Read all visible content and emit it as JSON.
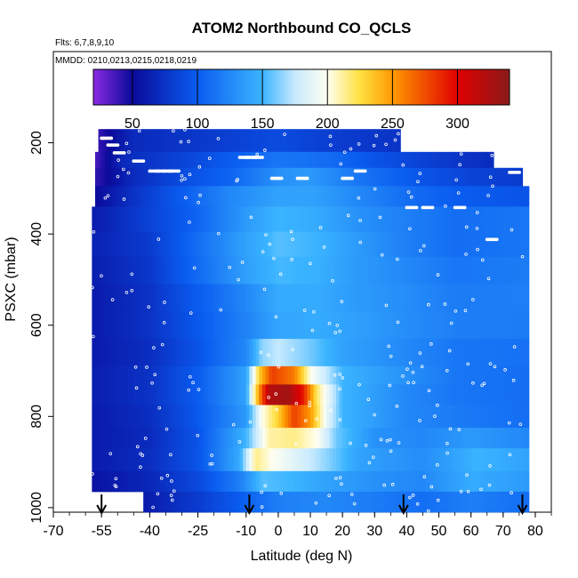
{
  "chart_data": {
    "type": "heatmap",
    "title": "ATOM2 Northbound CO_QCLS",
    "subtitle_flights": "Flts: 6,7,8,9,10",
    "subtitle_dates": "MMDD: 0210,0213,0215,0218,0219",
    "xlabel": "Latitude (deg N)",
    "ylabel": "PSXC (mbar)",
    "xlim": [
      -70,
      85
    ],
    "ylim": [
      1010,
      0
    ],
    "xticks": [
      -70,
      -55,
      -40,
      -25,
      -10,
      0,
      10,
      20,
      30,
      40,
      50,
      60,
      70,
      80
    ],
    "xtick_labels": [
      "-70",
      "-55",
      "-40",
      "-25",
      "-10",
      "0",
      "10",
      "20",
      "30",
      "40",
      "50",
      "60",
      "70",
      "80"
    ],
    "yticks": [
      200,
      400,
      600,
      800,
      1000
    ],
    "ytick_labels": [
      "200",
      "400",
      "600",
      "800",
      "1000"
    ],
    "colorbar": {
      "range": [
        20,
        340
      ],
      "ticks": [
        50,
        100,
        150,
        200,
        250,
        300
      ],
      "tick_labels": [
        "50",
        "100",
        "150",
        "200",
        "250",
        "300"
      ],
      "stops": [
        {
          "v": 20,
          "c": "#8a2be2"
        },
        {
          "v": 50,
          "c": "#0a0a9a"
        },
        {
          "v": 100,
          "c": "#0a5cf0"
        },
        {
          "v": 150,
          "c": "#3ab4ff"
        },
        {
          "v": 175,
          "c": "#c8eaff"
        },
        {
          "v": 200,
          "c": "#fffff0"
        },
        {
          "v": 225,
          "c": "#ffe040"
        },
        {
          "v": 250,
          "c": "#ff9a00"
        },
        {
          "v": 300,
          "c": "#e00000"
        },
        {
          "v": 340,
          "c": "#8b1a1a"
        }
      ]
    },
    "bands": [
      {
        "p0": 170,
        "p1": 220,
        "lat0": -56,
        "lat1": 38,
        "nodes": [
          [
            -56,
            40
          ],
          [
            -45,
            70
          ],
          [
            -25,
            78
          ],
          [
            0,
            90
          ],
          [
            20,
            80
          ],
          [
            38,
            75
          ]
        ]
      },
      {
        "p0": 220,
        "p1": 255,
        "lat0": -57,
        "lat1": 67,
        "nodes": [
          [
            -57,
            35
          ],
          [
            -48,
            70
          ],
          [
            -30,
            85
          ],
          [
            -15,
            100
          ],
          [
            0,
            115
          ],
          [
            15,
            110
          ],
          [
            30,
            95
          ],
          [
            50,
            80
          ],
          [
            67,
            70
          ]
        ]
      },
      {
        "p0": 255,
        "p1": 295,
        "lat0": -57,
        "lat1": 76,
        "nodes": [
          [
            -57,
            40
          ],
          [
            -45,
            70
          ],
          [
            -30,
            90
          ],
          [
            -15,
            105
          ],
          [
            0,
            130
          ],
          [
            10,
            135
          ],
          [
            25,
            115
          ],
          [
            45,
            95
          ],
          [
            60,
            85
          ],
          [
            76,
            80
          ]
        ]
      },
      {
        "p0": 295,
        "p1": 340,
        "lat0": -57,
        "lat1": 78,
        "nodes": [
          [
            -57,
            50
          ],
          [
            -45,
            75
          ],
          [
            -30,
            100
          ],
          [
            -15,
            125
          ],
          [
            0,
            140
          ],
          [
            10,
            140
          ],
          [
            25,
            125
          ],
          [
            40,
            110
          ],
          [
            55,
            100
          ],
          [
            78,
            95
          ]
        ]
      },
      {
        "p0": 340,
        "p1": 395,
        "lat0": -58,
        "lat1": 78,
        "nodes": [
          [
            -58,
            60
          ],
          [
            -40,
            85
          ],
          [
            -25,
            105
          ],
          [
            -10,
            135
          ],
          [
            0,
            150
          ],
          [
            12,
            145
          ],
          [
            25,
            130
          ],
          [
            40,
            120
          ],
          [
            55,
            110
          ],
          [
            78,
            115
          ]
        ]
      },
      {
        "p0": 395,
        "p1": 450,
        "lat0": -58,
        "lat1": 78,
        "nodes": [
          [
            -58,
            65
          ],
          [
            -40,
            80
          ],
          [
            -25,
            110
          ],
          [
            -10,
            140
          ],
          [
            0,
            155
          ],
          [
            12,
            150
          ],
          [
            25,
            135
          ],
          [
            40,
            120
          ],
          [
            55,
            110
          ],
          [
            78,
            115
          ]
        ]
      },
      {
        "p0": 450,
        "p1": 510,
        "lat0": -58,
        "lat1": 78,
        "nodes": [
          [
            -58,
            62
          ],
          [
            -40,
            78
          ],
          [
            -25,
            108
          ],
          [
            -10,
            138
          ],
          [
            0,
            152
          ],
          [
            12,
            148
          ],
          [
            25,
            135
          ],
          [
            40,
            125
          ],
          [
            55,
            115
          ],
          [
            78,
            118
          ]
        ]
      },
      {
        "p0": 510,
        "p1": 570,
        "lat0": -58,
        "lat1": 78,
        "nodes": [
          [
            -58,
            60
          ],
          [
            -40,
            75
          ],
          [
            -25,
            100
          ],
          [
            -10,
            125
          ],
          [
            0,
            145
          ],
          [
            12,
            145
          ],
          [
            25,
            135
          ],
          [
            40,
            128
          ],
          [
            55,
            118
          ],
          [
            78,
            120
          ]
        ]
      },
      {
        "p0": 570,
        "p1": 630,
        "lat0": -58,
        "lat1": 78,
        "nodes": [
          [
            -58,
            60
          ],
          [
            -40,
            75
          ],
          [
            -25,
            98
          ],
          [
            -10,
            122
          ],
          [
            0,
            142
          ],
          [
            12,
            145
          ],
          [
            25,
            138
          ],
          [
            40,
            128
          ],
          [
            55,
            120
          ],
          [
            78,
            118
          ]
        ]
      },
      {
        "p0": 630,
        "p1": 690,
        "lat0": -58,
        "lat1": 78,
        "nodes": [
          [
            -58,
            60
          ],
          [
            -40,
            72
          ],
          [
            -25,
            95
          ],
          [
            -10,
            125
          ],
          [
            -5,
            165
          ],
          [
            0,
            175
          ],
          [
            10,
            160
          ],
          [
            20,
            140
          ],
          [
            40,
            125
          ],
          [
            55,
            115
          ],
          [
            78,
            112
          ]
        ]
      },
      {
        "p0": 690,
        "p1": 730,
        "lat0": -58,
        "lat1": 78,
        "nodes": [
          [
            -58,
            62
          ],
          [
            -40,
            75
          ],
          [
            -25,
            100
          ],
          [
            -10,
            140
          ],
          [
            -6,
            230
          ],
          [
            -2,
            280
          ],
          [
            5,
            260
          ],
          [
            10,
            200
          ],
          [
            20,
            150
          ],
          [
            40,
            130
          ],
          [
            55,
            115
          ],
          [
            78,
            110
          ]
        ]
      },
      {
        "p0": 730,
        "p1": 775,
        "lat0": -58,
        "lat1": 78,
        "nodes": [
          [
            -58,
            62
          ],
          [
            -40,
            75
          ],
          [
            -25,
            100
          ],
          [
            -10,
            140
          ],
          [
            -6,
            250
          ],
          [
            -3,
            320
          ],
          [
            3,
            330
          ],
          [
            8,
            290
          ],
          [
            12,
            220
          ],
          [
            20,
            150
          ],
          [
            40,
            125
          ],
          [
            55,
            115
          ],
          [
            78,
            110
          ]
        ]
      },
      {
        "p0": 775,
        "p1": 825,
        "lat0": -58,
        "lat1": 78,
        "nodes": [
          [
            -58,
            60
          ],
          [
            -40,
            72
          ],
          [
            -25,
            98
          ],
          [
            -10,
            135
          ],
          [
            -5,
            200
          ],
          [
            0,
            230
          ],
          [
            5,
            280
          ],
          [
            10,
            250
          ],
          [
            15,
            190
          ],
          [
            20,
            150
          ],
          [
            40,
            125
          ],
          [
            55,
            118
          ],
          [
            78,
            110
          ]
        ]
      },
      {
        "p0": 825,
        "p1": 870,
        "lat0": -58,
        "lat1": 78,
        "nodes": [
          [
            -58,
            60
          ],
          [
            -40,
            70
          ],
          [
            -25,
            95
          ],
          [
            -10,
            150
          ],
          [
            -3,
            210
          ],
          [
            5,
            215
          ],
          [
            12,
            200
          ],
          [
            18,
            160
          ],
          [
            30,
            130
          ],
          [
            45,
            125
          ],
          [
            60,
            135
          ],
          [
            78,
            125
          ]
        ]
      },
      {
        "p0": 870,
        "p1": 920,
        "lat0": -58,
        "lat1": 78,
        "nodes": [
          [
            -58,
            60
          ],
          [
            -40,
            72
          ],
          [
            -25,
            95
          ],
          [
            -12,
            145
          ],
          [
            -7,
            215
          ],
          [
            -2,
            200
          ],
          [
            8,
            180
          ],
          [
            15,
            165
          ],
          [
            25,
            140
          ],
          [
            45,
            128
          ],
          [
            62,
            150
          ],
          [
            78,
            140
          ]
        ]
      },
      {
        "p0": 920,
        "p1": 965,
        "lat0": -58,
        "lat1": 78,
        "nodes": [
          [
            -58,
            55
          ],
          [
            -40,
            68
          ],
          [
            -25,
            88
          ],
          [
            -12,
            120
          ],
          [
            -5,
            155
          ],
          [
            5,
            150
          ],
          [
            15,
            140
          ],
          [
            30,
            130
          ],
          [
            45,
            125
          ],
          [
            60,
            145
          ],
          [
            78,
            135
          ]
        ]
      },
      {
        "p0": 965,
        "p1": 1010,
        "lat0": -42,
        "lat1": 78,
        "nodes": [
          [
            -42,
            60
          ],
          [
            -25,
            80
          ],
          [
            -12,
            100
          ],
          [
            0,
            120
          ],
          [
            15,
            125
          ],
          [
            30,
            118
          ],
          [
            45,
            110
          ],
          [
            60,
            120
          ],
          [
            78,
            110
          ]
        ]
      }
    ],
    "flight_track_markers": [
      {
        "lat": -55,
        "p": 190
      },
      {
        "lat": -53,
        "p": 205
      },
      {
        "lat": -51,
        "p": 222
      },
      {
        "lat": -45,
        "p": 240
      },
      {
        "lat": -40,
        "p": 262
      },
      {
        "lat": -38,
        "p": 262
      },
      {
        "lat": -36,
        "p": 262
      },
      {
        "lat": -34,
        "p": 262
      },
      {
        "lat": -12,
        "p": 232
      },
      {
        "lat": -10,
        "p": 232
      },
      {
        "lat": -8,
        "p": 232
      },
      {
        "lat": 24,
        "p": 262
      },
      {
        "lat": 40,
        "p": 342
      },
      {
        "lat": 45,
        "p": 342
      },
      {
        "lat": 55,
        "p": 342
      },
      {
        "lat": 65,
        "p": 412
      },
      {
        "lat": 72,
        "p": 265
      },
      {
        "lat": 20,
        "p": 278
      },
      {
        "lat": 6,
        "p": 278
      },
      {
        "lat": -2,
        "p": 278
      }
    ],
    "profile_arrows_lat": [
      -55,
      -9,
      39,
      76
    ]
  }
}
